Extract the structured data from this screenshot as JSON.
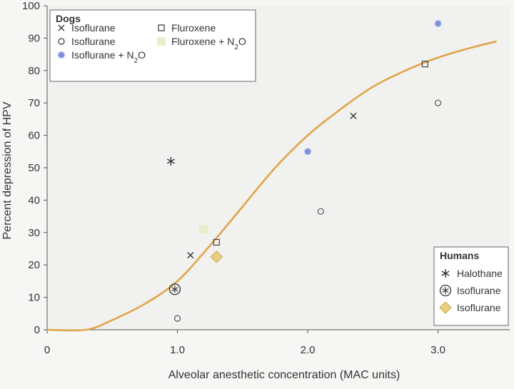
{
  "chart_data": {
    "type": "scatter",
    "xlabel": "Alveolar anesthetic concentration (MAC units)",
    "ylabel": "Percent depression of HPV",
    "xlim": [
      0,
      3.55
    ],
    "ylim": [
      0,
      100
    ],
    "x_ticks": [
      {
        "value": 0,
        "label": "0"
      },
      {
        "value": 1,
        "label": "1.0"
      },
      {
        "value": 2,
        "label": "2.0"
      },
      {
        "value": 3,
        "label": "3.0"
      }
    ],
    "y_ticks": [
      0,
      10,
      20,
      30,
      40,
      50,
      60,
      70,
      80,
      90,
      100
    ],
    "grid": false,
    "curve": {
      "color": "#e0a54a",
      "points": [
        [
          0,
          0
        ],
        [
          0.3,
          0
        ],
        [
          0.5,
          3
        ],
        [
          0.75,
          8
        ],
        [
          1.0,
          15
        ],
        [
          1.25,
          26
        ],
        [
          1.5,
          38
        ],
        [
          1.75,
          50
        ],
        [
          2.0,
          60
        ],
        [
          2.25,
          68
        ],
        [
          2.5,
          75
        ],
        [
          2.75,
          80
        ],
        [
          3.0,
          84
        ],
        [
          3.25,
          87
        ],
        [
          3.45,
          89
        ]
      ]
    },
    "series": [
      {
        "group": "Dogs",
        "name": "Isoflurane",
        "marker": "x",
        "color": "#333333",
        "points": [
          [
            1.1,
            23
          ],
          [
            2.35,
            66
          ]
        ]
      },
      {
        "group": "Dogs",
        "name": "Isoflurane",
        "marker": "open-circle",
        "color": "#555555",
        "points": [
          [
            1.0,
            3.5
          ],
          [
            2.1,
            36.5
          ],
          [
            3.0,
            70
          ]
        ]
      },
      {
        "group": "Dogs",
        "name": "Isoflurane + N2O",
        "marker": "blue-dot",
        "color": "#7f8fd8",
        "points": [
          [
            2.0,
            55
          ],
          [
            3.0,
            94.5
          ]
        ]
      },
      {
        "group": "Dogs",
        "name": "Fluroxene",
        "marker": "open-square",
        "color": "#444444",
        "points": [
          [
            1.3,
            27
          ],
          [
            2.9,
            82
          ]
        ]
      },
      {
        "group": "Dogs",
        "name": "Fluroxene + N2O",
        "marker": "filled-square",
        "color": "#e6efc8",
        "points": [
          [
            1.2,
            31
          ]
        ]
      },
      {
        "group": "Humans",
        "name": "Halothane",
        "marker": "asterisk",
        "color": "#333333",
        "points": [
          [
            0.95,
            52
          ]
        ]
      },
      {
        "group": "Humans",
        "name": "Isoflurane",
        "marker": "circled-asterisk",
        "color": "#333333",
        "points": [
          [
            0.98,
            12.5
          ]
        ]
      },
      {
        "group": "Humans",
        "name": "Isoflurane",
        "marker": "diamond",
        "color": "#e8cf7e",
        "points": [
          [
            1.3,
            22.5
          ]
        ]
      }
    ],
    "legends": [
      {
        "title": "Dogs",
        "placement": "top-left",
        "entries": [
          {
            "marker": "x",
            "text": "Isoflurane",
            "sub": ""
          },
          {
            "marker": "open-circle",
            "text": "Isoflurane",
            "sub": ""
          },
          {
            "marker": "blue-dot",
            "text": "Isoflurane + N",
            "sub": "2",
            "tail": "O"
          },
          {
            "marker": "open-square",
            "text": "Fluroxene",
            "sub": ""
          },
          {
            "marker": "filled-square",
            "text": "Fluroxene + N",
            "sub": "2",
            "tail": "O"
          }
        ]
      },
      {
        "title": "Humans",
        "placement": "bottom-right",
        "entries": [
          {
            "marker": "asterisk",
            "text": "Halothane"
          },
          {
            "marker": "circled-asterisk",
            "text": "Isoflurane"
          },
          {
            "marker": "diamond",
            "text": "Isoflurane"
          }
        ]
      }
    ]
  }
}
